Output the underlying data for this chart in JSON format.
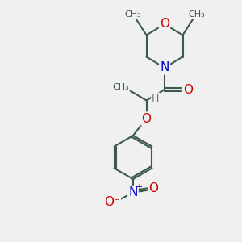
{
  "bg_color": "#f0f0f0",
  "bond_color": "#3a5a4a",
  "bond_width": 1.5,
  "atom_colors": {
    "O": "#cc0000",
    "N": "#0000cc",
    "C": "#3a5a4a",
    "H": "#5a7a6a"
  },
  "figsize": [
    3.0,
    3.0
  ],
  "dpi": 100,
  "xlim": [
    0,
    10
  ],
  "ylim": [
    0,
    10
  ]
}
